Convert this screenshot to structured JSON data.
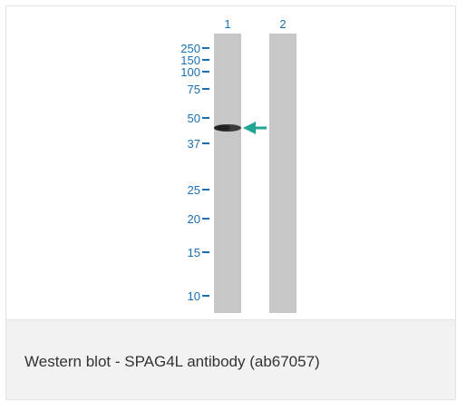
{
  "blot": {
    "lane_labels": [
      "1",
      "2"
    ],
    "markers": [
      "250",
      "150",
      "100",
      "75",
      "50",
      "37",
      "25",
      "20",
      "15",
      "10"
    ],
    "colors": {
      "label_blue": "#1a6fb3",
      "lane_gray": "#c7c7c7",
      "band": "#3a3a3a",
      "arrow": "#21a696"
    },
    "arrow_icon": "arrow-left-icon"
  },
  "caption": {
    "text": "Western blot - SPAG4L antibody (ab67057)"
  }
}
